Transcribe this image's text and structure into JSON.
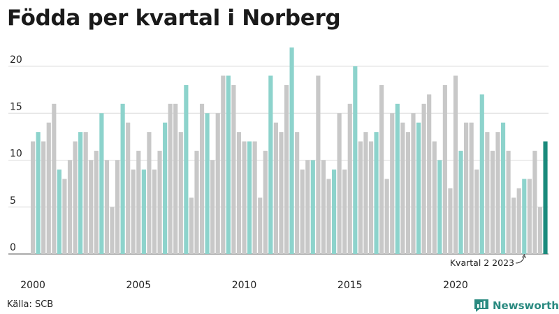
{
  "title": "Födda per kvartal i Norberg",
  "source": "Källa: SCB",
  "brand": "Newsworthy",
  "colors": {
    "gray": "#c8c8c8",
    "q2": "#8dd3cc",
    "latest": "#1a8a7c",
    "grid": "#dcdcdc",
    "brand": "#2a8a80"
  },
  "chart_data": {
    "type": "bar",
    "title": "Födda per kvartal i Norberg",
    "xlabel": "",
    "ylabel": "",
    "ylim": [
      0,
      22
    ],
    "yticks": [
      0,
      5,
      10,
      15,
      20
    ],
    "xticks": [
      "2000",
      "2005",
      "2010",
      "2015",
      "2020"
    ],
    "grid": true,
    "start_year": 2000,
    "annotation": "Kvartal 2 2023",
    "values": [
      12,
      13,
      12,
      14,
      16,
      9,
      8,
      10,
      12,
      13,
      13,
      10,
      11,
      15,
      10,
      5,
      10,
      16,
      14,
      9,
      11,
      9,
      13,
      9,
      11,
      14,
      16,
      16,
      13,
      18,
      6,
      11,
      16,
      15,
      10,
      15,
      19,
      19,
      18,
      13,
      12,
      12,
      12,
      6,
      11,
      19,
      14,
      13,
      18,
      22,
      13,
      9,
      10,
      10,
      19,
      10,
      8,
      9,
      15,
      9,
      16,
      20,
      12,
      13,
      12,
      13,
      18,
      8,
      15,
      16,
      14,
      13,
      15,
      14,
      16,
      17,
      12,
      10,
      18,
      7,
      19,
      11,
      14,
      14,
      9,
      17,
      13,
      11,
      13,
      14,
      11,
      6,
      7,
      8,
      8,
      11,
      5,
      12
    ]
  }
}
